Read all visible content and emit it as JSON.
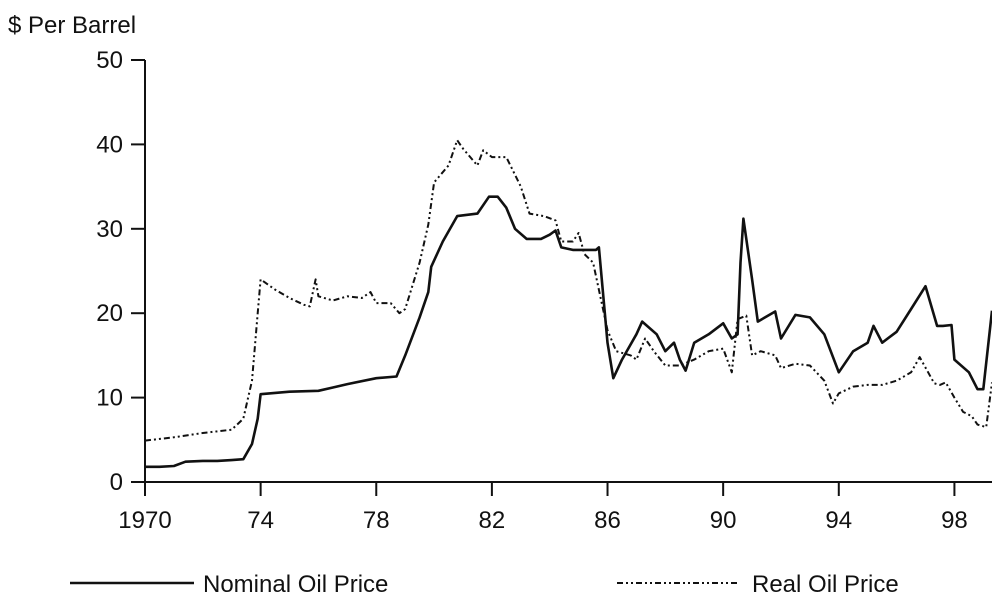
{
  "chart_data": {
    "type": "line",
    "ylabel": "$ Per Barrel",
    "xlabel": "",
    "xlim": [
      1970,
      1999.3
    ],
    "ylim": [
      0,
      50
    ],
    "x_ticks": [
      1970,
      1974,
      1978,
      1982,
      1986,
      1990,
      1994,
      1998
    ],
    "x_tick_labels": [
      "1970",
      "74",
      "78",
      "82",
      "86",
      "90",
      "94",
      "98"
    ],
    "y_ticks": [
      0,
      10,
      20,
      30,
      40,
      50
    ],
    "y_tick_labels": [
      "0",
      "10",
      "20",
      "30",
      "40",
      "50"
    ],
    "grid": false,
    "legend": "bottom",
    "series": [
      {
        "name": "Nominal Oil Price",
        "style": "solid",
        "color": "#111111",
        "points": [
          [
            1970.0,
            1.8
          ],
          [
            1970.5,
            1.8
          ],
          [
            1971.0,
            1.9
          ],
          [
            1971.4,
            2.4
          ],
          [
            1972.0,
            2.5
          ],
          [
            1972.5,
            2.5
          ],
          [
            1973.0,
            2.6
          ],
          [
            1973.4,
            2.7
          ],
          [
            1973.7,
            4.5
          ],
          [
            1973.9,
            7.5
          ],
          [
            1974.0,
            10.4
          ],
          [
            1975.0,
            10.7
          ],
          [
            1976.0,
            10.8
          ],
          [
            1976.5,
            11.2
          ],
          [
            1977.0,
            11.6
          ],
          [
            1978.0,
            12.3
          ],
          [
            1978.7,
            12.5
          ],
          [
            1979.0,
            15.0
          ],
          [
            1979.5,
            19.5
          ],
          [
            1979.8,
            22.5
          ],
          [
            1979.9,
            25.5
          ],
          [
            1980.3,
            28.5
          ],
          [
            1980.8,
            31.5
          ],
          [
            1981.5,
            31.8
          ],
          [
            1981.9,
            33.8
          ],
          [
            1982.2,
            33.8
          ],
          [
            1982.5,
            32.5
          ],
          [
            1982.8,
            30.0
          ],
          [
            1983.2,
            28.8
          ],
          [
            1983.7,
            28.8
          ],
          [
            1984.0,
            29.3
          ],
          [
            1984.2,
            29.8
          ],
          [
            1984.4,
            27.8
          ],
          [
            1984.8,
            27.5
          ],
          [
            1985.6,
            27.5
          ],
          [
            1985.7,
            27.8
          ],
          [
            1986.0,
            16.5
          ],
          [
            1986.2,
            12.3
          ],
          [
            1986.5,
            14.5
          ],
          [
            1987.0,
            17.5
          ],
          [
            1987.2,
            19.0
          ],
          [
            1987.7,
            17.5
          ],
          [
            1988.0,
            15.5
          ],
          [
            1988.3,
            16.5
          ],
          [
            1988.5,
            14.5
          ],
          [
            1988.7,
            13.2
          ],
          [
            1989.0,
            16.5
          ],
          [
            1989.5,
            17.5
          ],
          [
            1990.0,
            18.8
          ],
          [
            1990.3,
            17.0
          ],
          [
            1990.5,
            17.5
          ],
          [
            1990.6,
            26.0
          ],
          [
            1990.7,
            31.2
          ],
          [
            1991.0,
            24.0
          ],
          [
            1991.2,
            19.0
          ],
          [
            1991.8,
            20.2
          ],
          [
            1992.0,
            17.0
          ],
          [
            1992.5,
            19.8
          ],
          [
            1993.0,
            19.5
          ],
          [
            1993.5,
            17.5
          ],
          [
            1994.0,
            13.0
          ],
          [
            1994.5,
            15.5
          ],
          [
            1995.0,
            16.5
          ],
          [
            1995.2,
            18.5
          ],
          [
            1995.5,
            16.5
          ],
          [
            1996.0,
            17.8
          ],
          [
            1996.5,
            20.5
          ],
          [
            1997.0,
            23.2
          ],
          [
            1997.4,
            18.5
          ],
          [
            1997.6,
            18.5
          ],
          [
            1997.9,
            18.6
          ],
          [
            1998.0,
            14.5
          ],
          [
            1998.5,
            13.0
          ],
          [
            1998.8,
            11.0
          ],
          [
            1999.0,
            11.0
          ],
          [
            1999.3,
            20.3
          ]
        ]
      },
      {
        "name": "Real Oil Price",
        "style": "dash-dot",
        "color": "#111111",
        "points": [
          [
            1970.0,
            4.9
          ],
          [
            1971.0,
            5.3
          ],
          [
            1972.0,
            5.8
          ],
          [
            1973.0,
            6.2
          ],
          [
            1973.4,
            7.5
          ],
          [
            1973.7,
            12.0
          ],
          [
            1973.9,
            20.0
          ],
          [
            1974.0,
            24.0
          ],
          [
            1974.5,
            22.8
          ],
          [
            1975.0,
            21.8
          ],
          [
            1975.5,
            21.0
          ],
          [
            1975.7,
            20.8
          ],
          [
            1975.9,
            24.0
          ],
          [
            1976.0,
            22.0
          ],
          [
            1976.5,
            21.5
          ],
          [
            1977.0,
            22.0
          ],
          [
            1977.5,
            21.8
          ],
          [
            1977.8,
            22.5
          ],
          [
            1978.0,
            21.2
          ],
          [
            1978.5,
            21.2
          ],
          [
            1978.8,
            20.0
          ],
          [
            1979.0,
            20.5
          ],
          [
            1979.5,
            26.0
          ],
          [
            1979.8,
            30.5
          ],
          [
            1980.0,
            35.5
          ],
          [
            1980.5,
            37.5
          ],
          [
            1980.8,
            40.5
          ],
          [
            1981.0,
            39.5
          ],
          [
            1981.5,
            37.5
          ],
          [
            1981.7,
            39.3
          ],
          [
            1982.0,
            38.5
          ],
          [
            1982.5,
            38.5
          ],
          [
            1983.0,
            35.0
          ],
          [
            1983.3,
            31.8
          ],
          [
            1983.8,
            31.5
          ],
          [
            1984.2,
            31.0
          ],
          [
            1984.4,
            28.5
          ],
          [
            1984.8,
            28.5
          ],
          [
            1985.0,
            29.5
          ],
          [
            1985.2,
            27.0
          ],
          [
            1985.5,
            26.0
          ],
          [
            1986.0,
            18.0
          ],
          [
            1986.3,
            15.5
          ],
          [
            1986.8,
            15.0
          ],
          [
            1987.0,
            14.5
          ],
          [
            1987.3,
            17.0
          ],
          [
            1987.6,
            15.5
          ],
          [
            1988.0,
            13.8
          ],
          [
            1988.5,
            13.8
          ],
          [
            1989.0,
            14.5
          ],
          [
            1989.5,
            15.5
          ],
          [
            1990.0,
            15.8
          ],
          [
            1990.3,
            13.0
          ],
          [
            1990.5,
            19.3
          ],
          [
            1990.8,
            19.7
          ],
          [
            1991.0,
            15.0
          ],
          [
            1991.3,
            15.5
          ],
          [
            1991.8,
            15.0
          ],
          [
            1992.0,
            13.5
          ],
          [
            1992.5,
            14.0
          ],
          [
            1993.0,
            13.8
          ],
          [
            1993.5,
            12.0
          ],
          [
            1993.8,
            9.3
          ],
          [
            1994.0,
            10.5
          ],
          [
            1994.5,
            11.3
          ],
          [
            1995.0,
            11.5
          ],
          [
            1995.5,
            11.5
          ],
          [
            1996.0,
            12.0
          ],
          [
            1996.5,
            13.0
          ],
          [
            1996.8,
            14.8
          ],
          [
            1997.3,
            11.7
          ],
          [
            1997.5,
            11.5
          ],
          [
            1997.7,
            11.8
          ],
          [
            1998.0,
            10.0
          ],
          [
            1998.3,
            8.3
          ],
          [
            1998.6,
            7.8
          ],
          [
            1998.8,
            6.8
          ],
          [
            1999.1,
            6.5
          ],
          [
            1999.3,
            11.8
          ]
        ]
      }
    ]
  }
}
